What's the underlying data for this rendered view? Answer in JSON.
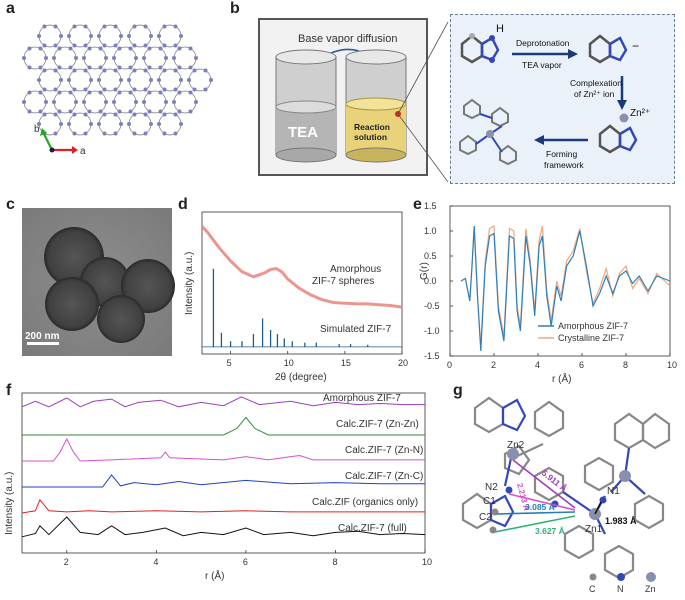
{
  "panels": {
    "a": "a",
    "b": "b",
    "c": "c",
    "d": "d",
    "e": "e",
    "f": "f",
    "g": "g"
  },
  "panel_a": {
    "axis_b": "b",
    "axis_a": "a"
  },
  "panel_b": {
    "title": "Base vapor diffusion",
    "tea": "TEA",
    "reaction": "Reaction\nsolution",
    "H": "H",
    "deprot": "Deprotonation",
    "tea_vapor": "TEA vapor",
    "minus": "−",
    "complex1": "Complexation",
    "complex2": "of Zn²⁺ ion",
    "zn": "Zn²⁺",
    "forming1": "Forming",
    "forming2": "framework"
  },
  "panel_c": {
    "scale": "200 nm"
  },
  "panel_g": {
    "labels": {
      "zn2": "Zn2",
      "n2": "N2",
      "c1": "C1",
      "c2": "C2",
      "zn1": "Zn1",
      "n1": "N1"
    },
    "distances": {
      "d1": "5.911 Å",
      "d2": "2.213 Å",
      "d3": "3.085 Å",
      "d4": "3.627 Å",
      "d5": "1.983 Å"
    },
    "legend": [
      "C",
      "N",
      "Zn"
    ]
  },
  "chart_data": [
    {
      "panel": "d",
      "type": "line",
      "xlabel": "2θ (degree)",
      "ylabel": "Intensity (a.u.)",
      "xlim": [
        2.5,
        20
      ],
      "xticks": [
        5,
        10,
        15,
        20
      ],
      "series": [
        {
          "name": "Amorphous ZIF-7 spheres",
          "color": "#e8837a",
          "x": [
            2.5,
            3,
            4,
            5,
            6,
            7,
            8,
            8.5,
            9,
            9.5,
            10,
            11,
            12,
            13,
            14,
            15,
            16,
            17,
            18,
            19,
            20
          ],
          "y": [
            0.9,
            0.85,
            0.74,
            0.65,
            0.58,
            0.55,
            0.58,
            0.6,
            0.6,
            0.57,
            0.52,
            0.46,
            0.42,
            0.39,
            0.37,
            0.36,
            0.35,
            0.345,
            0.34,
            0.34,
            0.335
          ]
        },
        {
          "name": "Simulated ZIF-7",
          "color": "#1f5c8a",
          "peaks": [
            [
              3.5,
              0.55
            ],
            [
              4.2,
              0.1
            ],
            [
              5.0,
              0.04
            ],
            [
              6.0,
              0.04
            ],
            [
              7.0,
              0.09
            ],
            [
              7.8,
              0.2
            ],
            [
              8.5,
              0.12
            ],
            [
              9.1,
              0.09
            ],
            [
              9.7,
              0.06
            ],
            [
              10.4,
              0.04
            ],
            [
              11.5,
              0.03
            ],
            [
              12.5,
              0.03
            ],
            [
              14.5,
              0.02
            ],
            [
              15.5,
              0.02
            ],
            [
              17,
              0.015
            ]
          ]
        }
      ]
    },
    {
      "panel": "e",
      "type": "line",
      "xlabel": "r (Å)",
      "ylabel": "G(r)",
      "xlim": [
        0,
        10
      ],
      "ylim": [
        -1.5,
        1.5
      ],
      "xticks": [
        0,
        2,
        4,
        6,
        8,
        10
      ],
      "yticks": [
        -1.5,
        -1.0,
        -0.5,
        0.0,
        0.5,
        1.0,
        1.5
      ],
      "legend": "bottom-right",
      "series": [
        {
          "name": "Amorphous ZIF-7",
          "color": "#2f7fb8",
          "x": [
            0.5,
            0.7,
            0.9,
            1.0,
            1.1,
            1.25,
            1.4,
            1.6,
            1.8,
            2.0,
            2.2,
            2.45,
            2.7,
            2.9,
            3.05,
            3.2,
            3.45,
            3.65,
            3.85,
            4.05,
            4.2,
            4.4,
            4.6,
            4.85,
            5.05,
            5.3,
            5.6,
            5.9,
            6.2,
            6.5,
            6.8,
            7.1,
            7.4,
            7.7,
            8.0,
            8.3,
            8.6,
            9.0,
            9.4,
            10
          ],
          "y": [
            0,
            0.05,
            -0.4,
            0.3,
            1.1,
            -0.3,
            -1.4,
            0.3,
            0.9,
            0.95,
            -0.6,
            -1.2,
            0.9,
            0.85,
            -0.6,
            -1.0,
            0.9,
            0.3,
            -0.7,
            0.7,
            0.9,
            -0.3,
            -0.9,
            -0.1,
            -0.4,
            0.3,
            0.5,
            1.0,
            0.3,
            -0.5,
            -0.25,
            0.1,
            -0.25,
            0.1,
            0.2,
            -0.05,
            0.1,
            -0.2,
            0.1,
            0.0
          ]
        },
        {
          "name": "Crystalline ZIF-7",
          "color": "#f0a77e",
          "x": [
            0.5,
            0.7,
            0.9,
            1.0,
            1.1,
            1.25,
            1.4,
            1.6,
            1.8,
            2.0,
            2.2,
            2.45,
            2.7,
            2.9,
            3.05,
            3.2,
            3.45,
            3.65,
            3.85,
            4.05,
            4.2,
            4.4,
            4.6,
            4.85,
            5.05,
            5.3,
            5.6,
            5.9,
            6.2,
            6.5,
            6.8,
            7.1,
            7.4,
            7.7,
            8.0,
            8.3,
            8.6,
            9.0,
            9.4,
            10
          ],
          "y": [
            0,
            0.05,
            -0.4,
            0.3,
            1.05,
            -0.3,
            -1.3,
            0.4,
            1.05,
            1.1,
            -0.5,
            -1.1,
            1.05,
            1.0,
            -0.5,
            -0.9,
            1.05,
            0.4,
            -0.6,
            0.8,
            1.1,
            -0.2,
            -0.8,
            0.0,
            -0.3,
            0.4,
            0.6,
            1.05,
            0.2,
            -0.45,
            -0.15,
            0.25,
            -0.3,
            0.15,
            0.3,
            -0.15,
            0.05,
            -0.25,
            0.15,
            -0.1
          ]
        }
      ]
    },
    {
      "panel": "f",
      "type": "line",
      "xlabel": "r (Å)",
      "ylabel": "Intensity (a.u.)",
      "xlim": [
        1,
        10
      ],
      "xticks": [
        2,
        4,
        6,
        8,
        10
      ],
      "series": [
        {
          "name": "Amorphous ZIF-7",
          "color": "#9b3fb8",
          "offset": 5,
          "x": [
            1,
            1.3,
            1.6,
            2.0,
            2.3,
            2.6,
            3.0,
            3.3,
            3.6,
            4.1,
            4.5,
            5.0,
            5.5,
            5.9,
            6.3,
            7.0,
            7.5,
            8.0,
            8.5,
            9.0,
            9.5,
            10
          ],
          "y": [
            0.1,
            0.35,
            0.1,
            0.5,
            0.1,
            0.35,
            0.45,
            0.1,
            0.3,
            0.4,
            0.1,
            0.3,
            0.15,
            0.55,
            0.2,
            0.35,
            0.15,
            0.3,
            0.2,
            0.25,
            0.2,
            0.2
          ]
        },
        {
          "name": "Calc.ZIF-7 (Zn-Zn)",
          "color": "#2e8b3a",
          "offset": 4,
          "x": [
            1,
            5.5,
            5.8,
            6.0,
            6.2,
            6.5,
            10
          ],
          "y": [
            0,
            0,
            0.3,
            0.8,
            0.3,
            0,
            0
          ]
        },
        {
          "name": "Calc.ZIF-7 (Zn-N)",
          "color": "#d94fd0",
          "offset": 3,
          "x": [
            1,
            1.7,
            1.85,
            2.0,
            2.15,
            2.3,
            3.0,
            4.1,
            4.2,
            4.3,
            5.5,
            6.0,
            6.5,
            7.0,
            7.2,
            7.5,
            10
          ],
          "y": [
            0,
            0,
            0.4,
            1.0,
            0.4,
            0,
            0.05,
            0.15,
            0.4,
            0.15,
            0.05,
            0.2,
            0.05,
            0.2,
            0.25,
            0.05,
            0.05
          ]
        },
        {
          "name": "Calc.ZIF-7 (Zn-C)",
          "color": "#2040c0",
          "offset": 2,
          "x": [
            1,
            2.8,
            3.0,
            3.2,
            3.5,
            4.0,
            4.5,
            5.0,
            6.0,
            7.0,
            8.0,
            9.0,
            10
          ],
          "y": [
            0,
            0,
            0.55,
            0.05,
            0.2,
            0.1,
            0.25,
            0.1,
            0.3,
            0.15,
            0.2,
            0.15,
            0.15
          ]
        },
        {
          "name": "Calc.ZIF (organics only)",
          "color": "#e02020",
          "offset": 1,
          "x": [
            1,
            1.3,
            1.4,
            1.6,
            2.0,
            2.5,
            3.0,
            4.0,
            5.0,
            6.0,
            7.0,
            8.0,
            9.0,
            10
          ],
          "y": [
            0,
            0.1,
            0.6,
            0.1,
            0.05,
            0.1,
            0.05,
            0.1,
            0.05,
            0.1,
            0.05,
            0.05,
            0.05,
            0.05
          ]
        },
        {
          "name": "Calc.ZIF-7 (full)",
          "color": "#111111",
          "offset": 0,
          "x": [
            1,
            1.3,
            1.4,
            1.6,
            2.0,
            2.3,
            2.7,
            3.0,
            3.3,
            3.7,
            4.2,
            4.6,
            5.0,
            5.5,
            6.0,
            6.4,
            7.0,
            7.5,
            8.0,
            8.5,
            9.0,
            9.5,
            10
          ],
          "y": [
            0.1,
            0.25,
            0.6,
            0.2,
            1.0,
            0.3,
            0.2,
            0.6,
            0.2,
            0.3,
            0.5,
            0.15,
            0.3,
            0.2,
            0.5,
            0.2,
            0.3,
            0.15,
            0.3,
            0.35,
            0.2,
            0.25,
            0.2
          ]
        }
      ]
    }
  ]
}
